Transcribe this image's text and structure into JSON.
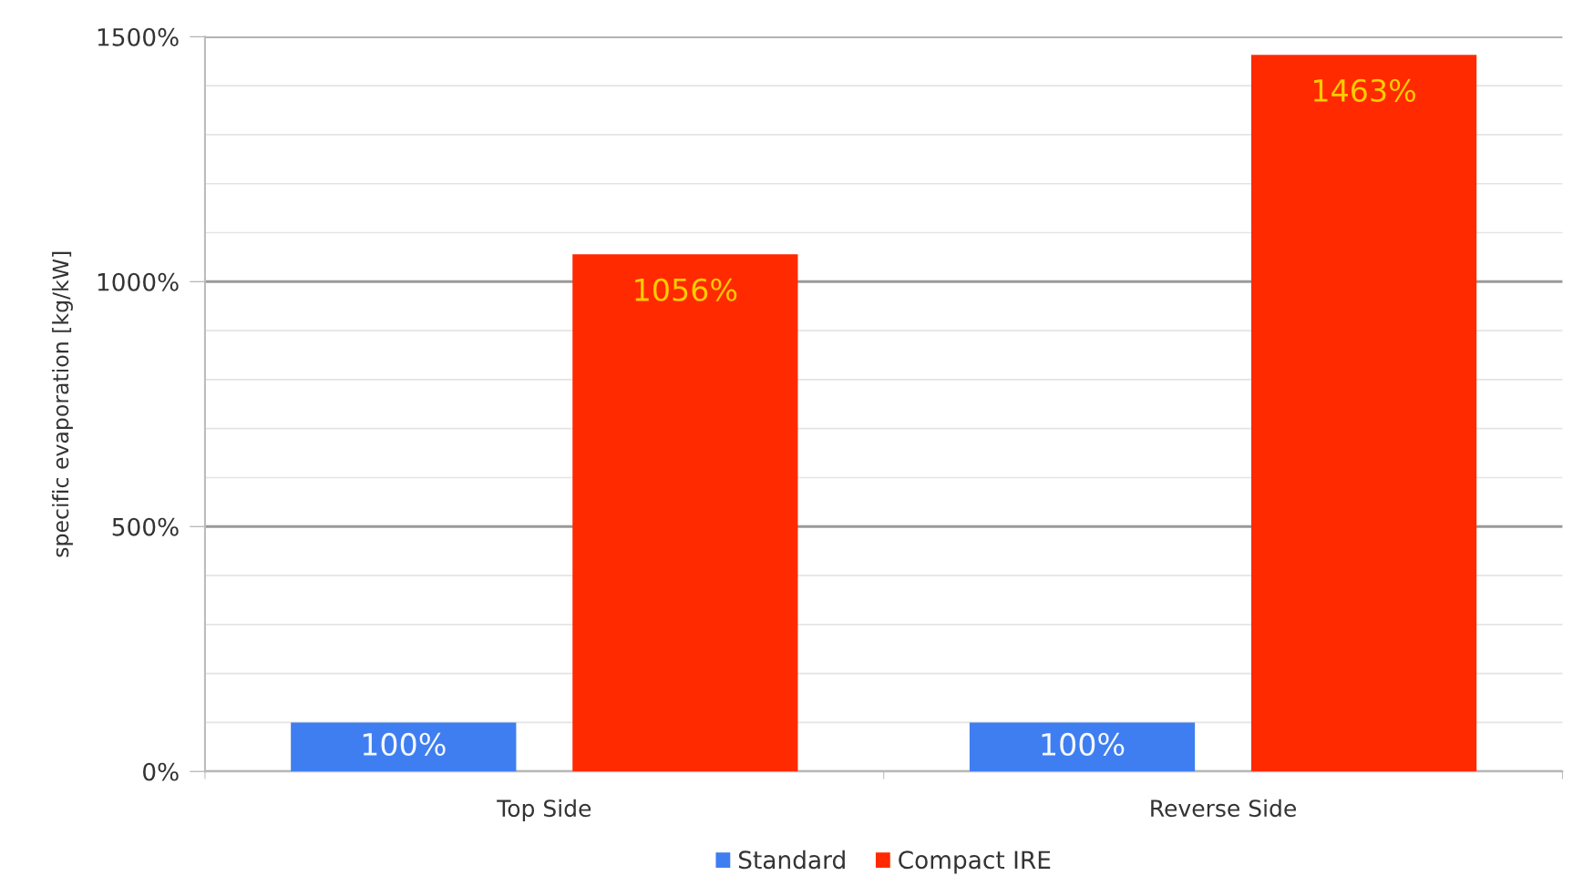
{
  "chart_data": {
    "type": "bar",
    "ylabel": "specific evaporation [kg/kW]",
    "categories": [
      "Top Side",
      "Reverse Side"
    ],
    "series": [
      {
        "name": "Standard",
        "color": "#3f7ef0",
        "values": [
          100,
          100
        ],
        "value_labels": [
          "100%",
          "100%"
        ]
      },
      {
        "name": "Compact IRE",
        "color": "#ff2a00",
        "values": [
          1056,
          1463
        ],
        "value_labels": [
          "1056%",
          "1463%"
        ]
      }
    ],
    "ylim": [
      0,
      1500
    ],
    "yticks": [
      {
        "value": 0,
        "label": "0%"
      },
      {
        "value": 100,
        "label": null
      },
      {
        "value": 200,
        "label": null
      },
      {
        "value": 300,
        "label": null
      },
      {
        "value": 400,
        "label": null
      },
      {
        "value": 500,
        "label": "500%"
      },
      {
        "value": 600,
        "label": null
      },
      {
        "value": 700,
        "label": null
      },
      {
        "value": 800,
        "label": null
      },
      {
        "value": 900,
        "label": null
      },
      {
        "value": 1000,
        "label": "1000%"
      },
      {
        "value": 1100,
        "label": null
      },
      {
        "value": 1200,
        "label": null
      },
      {
        "value": 1300,
        "label": null
      },
      {
        "value": 1400,
        "label": null
      },
      {
        "value": 1500,
        "label": "1500%"
      }
    ],
    "grid": "y",
    "legend": "bottom"
  }
}
